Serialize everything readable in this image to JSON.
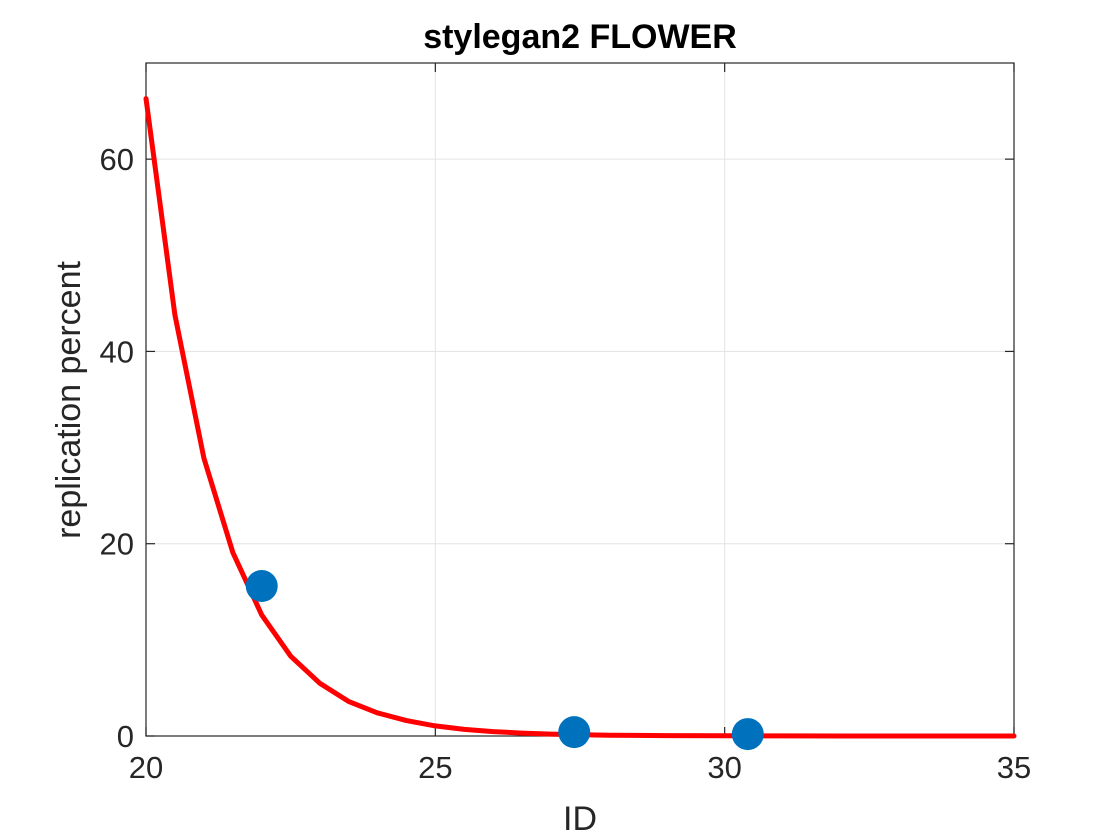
{
  "chart_data": {
    "type": "scatter",
    "title": "stylegan2 FLOWER",
    "xlabel": "ID",
    "ylabel": "replication percent",
    "xlim": [
      20,
      35
    ],
    "ylim": [
      0,
      70
    ],
    "xticks": [
      20,
      25,
      30,
      35
    ],
    "yticks": [
      0,
      20,
      40,
      60
    ],
    "xtick_labels": [
      "20",
      "25",
      "30",
      "35"
    ],
    "ytick_labels": [
      "0",
      "20",
      "40",
      "60"
    ],
    "grid": true,
    "series": [
      {
        "kind": "scatter",
        "color": "#0072BD",
        "x": [
          22.0,
          27.4,
          30.4
        ],
        "y": [
          15.6,
          0.4,
          0.2
        ]
      },
      {
        "kind": "line",
        "color": "#FF0000",
        "x": [
          20.0,
          20.5,
          21.0,
          21.5,
          22.0,
          22.5,
          23.0,
          23.5,
          24.0,
          24.5,
          25.0,
          25.5,
          26.0,
          26.5,
          27.0,
          28.0,
          29.0,
          30.0,
          31.0,
          32.0,
          33.0,
          34.0,
          35.0
        ],
        "y": [
          66.3,
          43.8,
          28.9,
          19.1,
          12.6,
          8.3,
          5.5,
          3.6,
          2.4,
          1.6,
          1.05,
          0.69,
          0.46,
          0.3,
          0.2,
          0.087,
          0.038,
          0.017,
          0.007,
          0.003,
          0.001,
          0.0006,
          0.0003
        ]
      }
    ]
  }
}
